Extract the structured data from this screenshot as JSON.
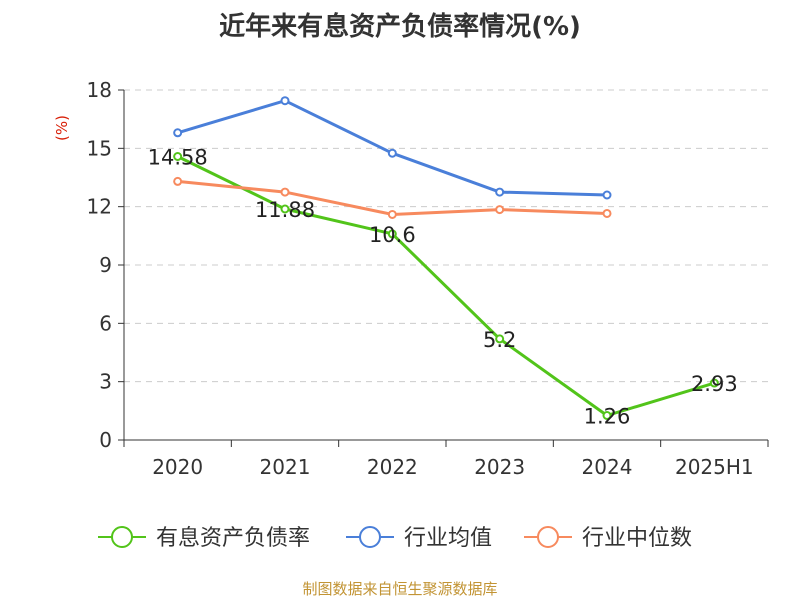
{
  "chart_data": {
    "type": "line",
    "title": "近年来有息资产负债率情况(%)",
    "ylabel": "(%)",
    "xlabel": "",
    "categories": [
      "2020",
      "2021",
      "2022",
      "2023",
      "2024",
      "2025H1"
    ],
    "ylim": [
      0,
      18
    ],
    "yticks": [
      "0",
      "3",
      "6",
      "9",
      "12",
      "15",
      "18"
    ],
    "grid": true,
    "legend_position": "bottom",
    "series": [
      {
        "name": "有息资产负债率",
        "color": "#52c41a",
        "values": [
          14.58,
          11.88,
          10.6,
          5.2,
          1.26,
          2.93
        ],
        "labels": [
          "14.58",
          "11.88",
          "10.6",
          "5.2",
          "1.26",
          "2.93"
        ]
      },
      {
        "name": "行业均值",
        "color": "#4a7fd9",
        "values": [
          15.8,
          17.45,
          14.75,
          12.75,
          12.6,
          null
        ],
        "labels": []
      },
      {
        "name": "行业中位数",
        "color": "#f78a5e",
        "values": [
          13.3,
          12.75,
          11.6,
          11.85,
          11.65,
          null
        ],
        "labels": []
      }
    ]
  },
  "footer": {
    "source": "制图数据来自恒生聚源数据库"
  }
}
